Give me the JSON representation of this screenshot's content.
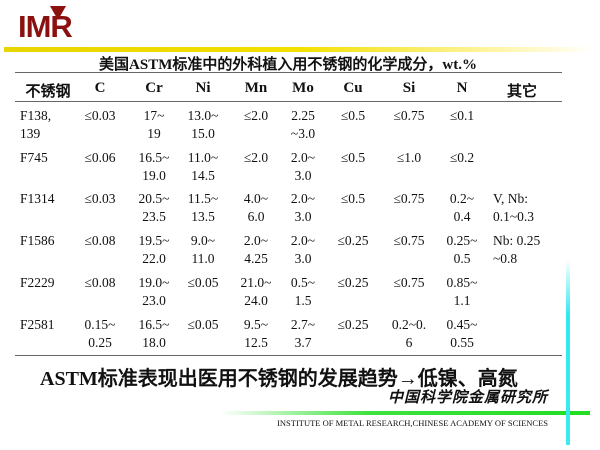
{
  "logo": {
    "text": "IMR",
    "color": "#8b1010"
  },
  "title": "美国ASTM标准中的外科植入用不锈钢的化学成分，wt.%",
  "table": {
    "headers": [
      "不锈钢",
      "C",
      "Cr",
      "Ni",
      "Mn",
      "Mo",
      "Cu",
      "Si",
      "N",
      "其它"
    ],
    "rows": [
      [
        "F138,\n139",
        "≤0.03",
        "17~\n19",
        "13.0~\n15.0",
        "≤2.0",
        "2.25\n~3.0",
        "≤0.5",
        "≤0.75",
        "≤0.1",
        ""
      ],
      [
        "F745",
        "≤0.06",
        "16.5~\n19.0",
        "11.0~\n14.5",
        "≤2.0",
        "2.0~\n3.0",
        "≤0.5",
        "≤1.0",
        "≤0.2",
        ""
      ],
      [
        "F1314",
        "≤0.03",
        "20.5~\n23.5",
        "11.5~\n13.5",
        "4.0~\n6.0",
        "2.0~\n3.0",
        "≤0.5",
        "≤0.75",
        "0.2~\n0.4",
        "V, Nb:\n0.1~0.3"
      ],
      [
        "F1586",
        "≤0.08",
        "19.5~\n22.0",
        "9.0~\n11.0",
        "2.0~\n4.25",
        "2.0~\n3.0",
        "≤0.25",
        "≤0.75",
        "0.25~\n0.5",
        "Nb: 0.25\n~0.8"
      ],
      [
        "F2229",
        "≤0.08",
        "19.0~\n23.0",
        "≤0.05",
        "21.0~\n24.0",
        "0.5~\n1.5",
        "≤0.25",
        "≤0.75",
        "0.85~\n1.1",
        ""
      ],
      [
        "F2581",
        "0.15~\n0.25",
        "16.5~\n18.0",
        "≤0.05",
        "9.5~\n12.5",
        "2.7~\n3.7",
        "≤0.25",
        "0.2~0.\n6",
        "0.45~\n0.55",
        ""
      ]
    ]
  },
  "conclusion": "ASTM标准表现出医用不锈钢的发展趋势→低镍、高氮",
  "footer": {
    "institute_cn": "中国科学院金属研究所",
    "institute_en": "INSTITUTE OF METAL RESEARCH,CHINESE ACADEMY OF SCIENCES"
  },
  "colors": {
    "yellow_bar": "#f3e000",
    "green_bar": "#22dd22",
    "cyan_bar": "#40e8f0"
  }
}
